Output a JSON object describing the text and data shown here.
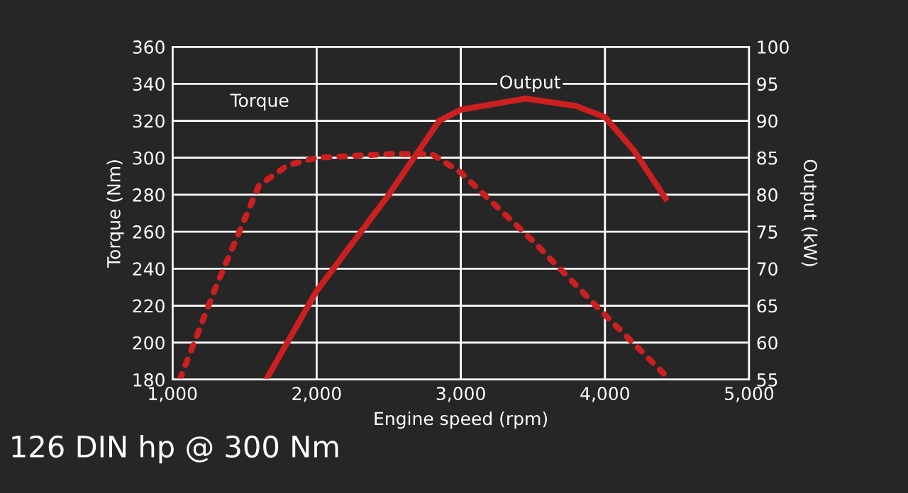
{
  "chart_data": {
    "type": "line",
    "xlabel": "Engine speed (rpm)",
    "ylabel": "Torque (Nm)",
    "y2label": "Output (kW)",
    "xlim": [
      1000,
      5000
    ],
    "xticks": [
      {
        "value": 1000,
        "label": "1,000"
      },
      {
        "value": 2000,
        "label": "2,000"
      },
      {
        "value": 3000,
        "label": "3,000"
      },
      {
        "value": 4000,
        "label": "4,000"
      },
      {
        "value": 5000,
        "label": "5,000"
      }
    ],
    "ylim": [
      180,
      360
    ],
    "yticks": [
      180,
      200,
      220,
      240,
      260,
      280,
      300,
      320,
      340,
      360
    ],
    "y2lim": [
      55,
      100
    ],
    "y2ticks": [
      55,
      60,
      65,
      70,
      75,
      80,
      85,
      90,
      95,
      100
    ],
    "grid": true,
    "legend": false,
    "annotations": [
      "126 DIN hp @ 300 Nm"
    ],
    "series": [
      {
        "name": "Torque",
        "color": "#cc1f1f",
        "line_style": "dotted",
        "x": [
          1050,
          1300,
          1600,
          1800,
          2000,
          2500,
          2800,
          3000,
          3500,
          4000,
          4450
        ],
        "values": [
          180,
          230,
          285,
          296,
          300,
          302,
          302,
          292,
          255,
          215,
          180
        ]
      },
      {
        "name": "Output",
        "color": "#cc1f1f",
        "line_style": "solid",
        "axis": "y2",
        "x": [
          1650,
          2000,
          2500,
          2850,
          3000,
          3450,
          3800,
          4000,
          4200,
          4420
        ],
        "values": [
          55,
          67,
          80,
          90,
          91.5,
          93,
          92,
          90.5,
          86,
          79.5
        ]
      }
    ]
  }
}
